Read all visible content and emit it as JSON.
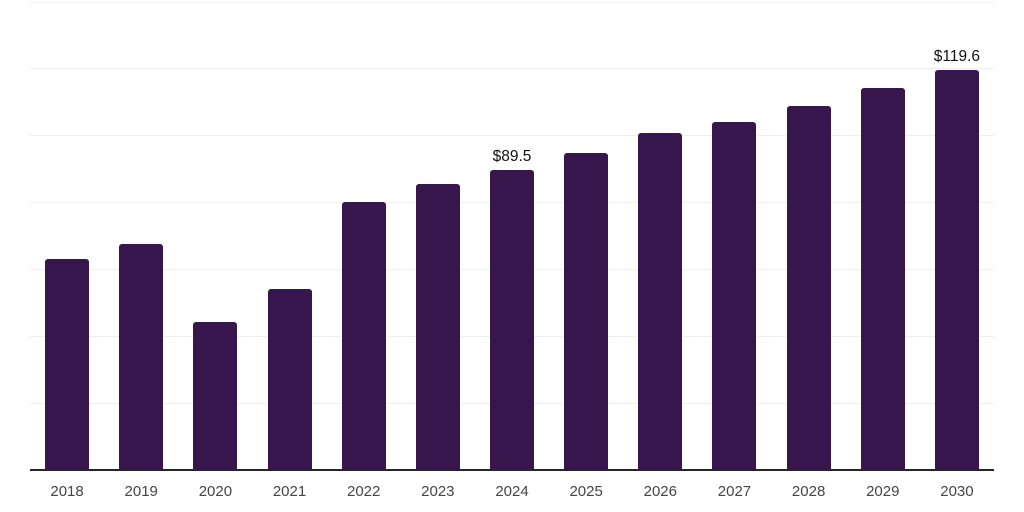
{
  "page": {
    "background": "#ffffff"
  },
  "chart_data": {
    "type": "bar",
    "title": "",
    "xlabel": "",
    "ylabel": "",
    "categories": [
      "2018",
      "2019",
      "2020",
      "2021",
      "2022",
      "2023",
      "2024",
      "2025",
      "2026",
      "2027",
      "2028",
      "2029",
      "2030"
    ],
    "values": [
      63.0,
      67.5,
      44.1,
      54.2,
      80.2,
      85.4,
      89.5,
      94.6,
      100.8,
      103.9,
      108.8,
      114.2,
      119.6
    ],
    "value_labels": {
      "2024": "$89.5",
      "2030": "$119.6"
    },
    "ylim": [
      0,
      140
    ],
    "grid_step": 20,
    "grid": true,
    "legend": false,
    "y_tick_labels_visible": false,
    "bar_color": "#37154D",
    "gridline_color": "#efefef",
    "axis_line_color": "#262626",
    "tick_label_color": "#454545",
    "value_label_color": "#111111"
  }
}
